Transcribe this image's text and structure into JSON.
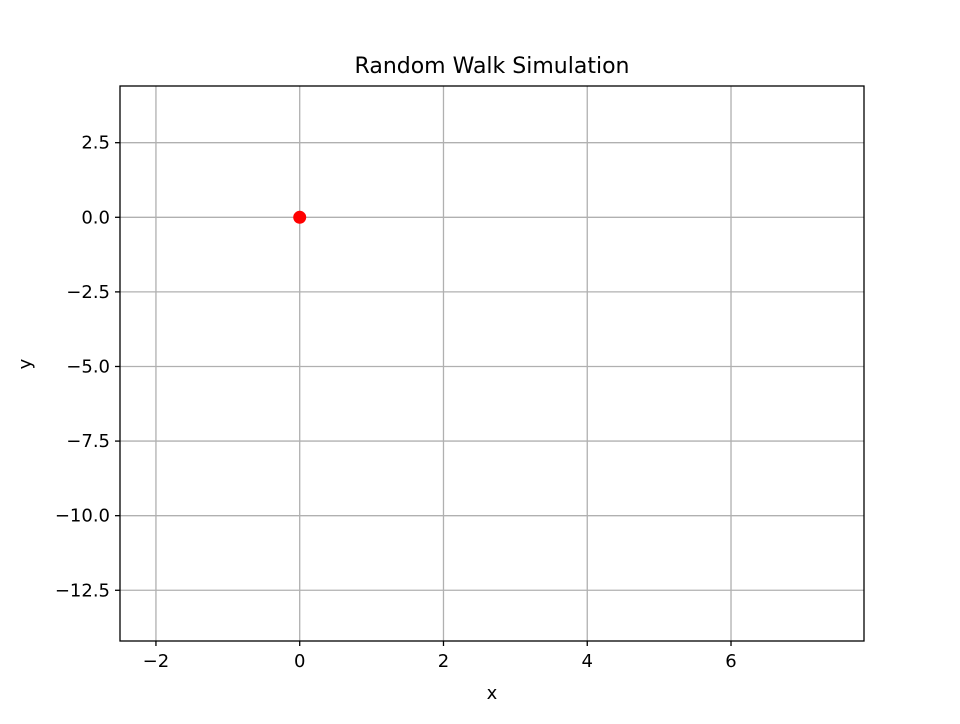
{
  "chart_data": {
    "type": "scatter",
    "title": "Random Walk Simulation",
    "xlabel": "x",
    "ylabel": "y",
    "xlim": [
      -2.5,
      7.85
    ],
    "ylim": [
      -14.2,
      4.4
    ],
    "xticks": [
      -2,
      0,
      2,
      4,
      6
    ],
    "yticks": [
      2.5,
      0.0,
      -2.5,
      -5.0,
      -7.5,
      -10.0,
      -12.5
    ],
    "xtick_labels": [
      "−2",
      "0",
      "2",
      "4",
      "6"
    ],
    "ytick_labels": [
      "2.5",
      "0.0",
      "−2.5",
      "−5.0",
      "−7.5",
      "−10.0",
      "−12.5"
    ],
    "grid": true,
    "series": [
      {
        "color": "#ff0000",
        "marker": "circle",
        "points": [
          {
            "x": 0,
            "y": 0
          }
        ]
      }
    ]
  }
}
